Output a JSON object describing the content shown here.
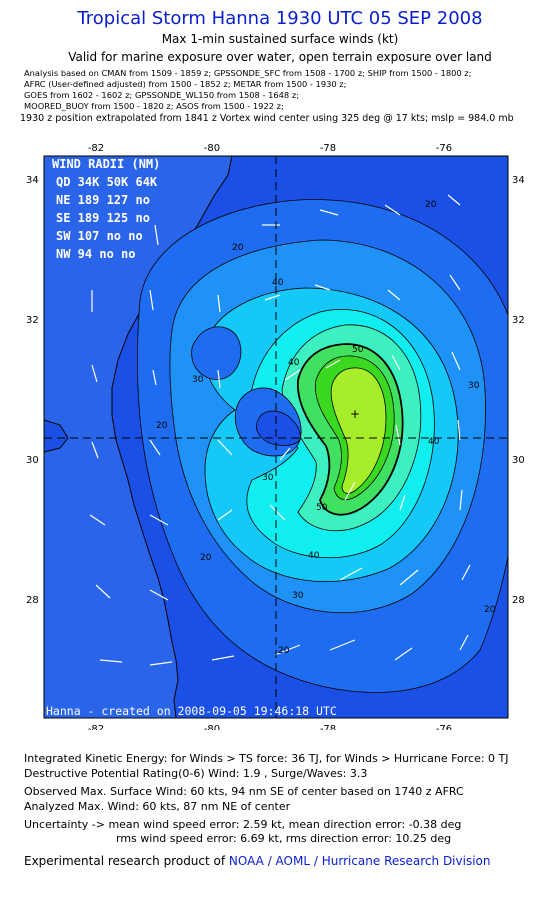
{
  "header": {
    "title": "Tropical Storm Hanna 1930 UTC 05 SEP 2008",
    "subtitle": "Max 1-min sustained surface winds (kt)",
    "valid_for": "Valid for marine exposure over water, open terrain exposure over land",
    "analysis_lines": [
      "Analysis based on  CMAN from 1509 - 1859 z;  GPSSONDE_SFC from 1508 - 1700 z;  SHIP from 1500 - 1800 z;",
      "AFRC (User-defined adjusted) from 1500 - 1852 z;  METAR from 1500 - 1930 z;",
      "GOES from 1602 - 1602 z;  GPSSONDE_WL150 from 1508 - 1648 z;",
      "MOORED_BUOY from 1500 - 1820 z;  ASOS from 1500 - 1922 z;"
    ],
    "position_note": "1930 z position extrapolated from 1841 z Vortex wind center using 325 deg @ 17 kts; mslp = 984.0 mb"
  },
  "map": {
    "lon_ticks": [
      "-82",
      "-80",
      "-78",
      "-76"
    ],
    "lat_ticks": [
      "34",
      "32",
      "30",
      "28"
    ],
    "wind_radii": {
      "title": "WIND RADII (NM)",
      "header": "QD 34K 50K 64K",
      "rows": [
        "NE 189 127  no",
        "SE 189 125  no",
        "SW 107  no  no",
        "NW  94  no  no"
      ]
    },
    "contour_labels": [
      "20",
      "20",
      "20",
      "20",
      "20",
      "30",
      "30",
      "30",
      "30",
      "40",
      "40",
      "40",
      "40",
      "50",
      "50",
      "20"
    ],
    "center_lon": -78.8,
    "center_lat": 30.3,
    "max_wind_marker_lon": -77.4,
    "max_wind_marker_lat": 30.6,
    "credit": "Hanna - created on 2008-09-05 19:46:18 UTC",
    "colors": {
      "level_below_20": "#1a50e6",
      "level_20": "#1e6cf0",
      "level_30": "#1e92f6",
      "level_35": "#14c8f8",
      "level_40": "#10eef0",
      "level_45": "#3cf0c0",
      "level_50": "#40e060",
      "level_55": "#3ad820",
      "level_60": "#a6ee2a",
      "land": "#2a64e8"
    }
  },
  "footer": {
    "ike": "Integrated Kinetic Energy:  for Winds > TS force: 36 TJ,  for Winds > Hurricane Force: 0 TJ",
    "dpr": "Destructive Potential Rating(0-6)   Wind: 1.9 , Surge/Waves: 3.3",
    "observed": "Observed Max. Surface Wind: 60 kts, 94 nm SE of center based on 1740 z AFRC",
    "analyzed": "Analyzed Max. Wind: 60 kts, 87 nm NE of center",
    "uncertainty_1": "Uncertainty -> mean wind speed error: 2.59 kt,   mean direction error:  -0.38 deg",
    "uncertainty_2": "rms wind speed error: 6.69 kt,   rms direction error: 10.25 deg",
    "product_prefix": "Experimental research product of ",
    "product_org": "NOAA / AOML / Hurricane Research Division"
  }
}
